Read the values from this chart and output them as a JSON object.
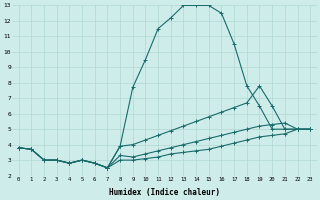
{
  "xlabel": "Humidex (Indice chaleur)",
  "background_color": "#ceecea",
  "grid_color": "#b0d8d4",
  "line_color": "#1a6b6b",
  "xlim": [
    -0.5,
    23.5
  ],
  "ylim": [
    2,
    13
  ],
  "xticks": [
    0,
    1,
    2,
    3,
    4,
    5,
    6,
    7,
    8,
    9,
    10,
    11,
    12,
    13,
    14,
    15,
    16,
    17,
    18,
    19,
    20,
    21,
    22,
    23
  ],
  "yticks": [
    2,
    3,
    4,
    5,
    6,
    7,
    8,
    9,
    10,
    11,
    12,
    13
  ],
  "line1_x": [
    0,
    1,
    2,
    3,
    4,
    5,
    6,
    7,
    8,
    9,
    10,
    11,
    12,
    13,
    14,
    15,
    16,
    17,
    18,
    19,
    20,
    21,
    22,
    23
  ],
  "line1_y": [
    3.8,
    3.7,
    3.0,
    3.0,
    2.8,
    3.0,
    2.8,
    2.5,
    3.9,
    7.7,
    9.5,
    11.5,
    12.2,
    13.0,
    13.0,
    13.0,
    12.5,
    10.5,
    7.8,
    6.5,
    5.0,
    5.0,
    5.0,
    5.0
  ],
  "line2_x": [
    0,
    1,
    2,
    3,
    4,
    5,
    6,
    7,
    8,
    9,
    10,
    11,
    12,
    13,
    14,
    15,
    16,
    17,
    18,
    19,
    20,
    21,
    22,
    23
  ],
  "line2_y": [
    3.8,
    3.7,
    3.0,
    3.0,
    2.8,
    3.0,
    2.8,
    2.5,
    3.9,
    4.0,
    4.3,
    4.6,
    4.9,
    5.2,
    5.5,
    5.8,
    6.1,
    6.4,
    6.7,
    7.8,
    6.5,
    5.0,
    5.0,
    5.0
  ],
  "line3_x": [
    0,
    1,
    2,
    3,
    4,
    5,
    6,
    7,
    8,
    9,
    10,
    11,
    12,
    13,
    14,
    15,
    16,
    17,
    18,
    19,
    20,
    21,
    22,
    23
  ],
  "line3_y": [
    3.8,
    3.7,
    3.0,
    3.0,
    2.8,
    3.0,
    2.8,
    2.5,
    3.3,
    3.2,
    3.4,
    3.6,
    3.8,
    4.0,
    4.2,
    4.4,
    4.6,
    4.8,
    5.0,
    5.2,
    5.3,
    5.4,
    5.0,
    5.0
  ],
  "line4_x": [
    0,
    1,
    2,
    3,
    4,
    5,
    6,
    7,
    8,
    9,
    10,
    11,
    12,
    13,
    14,
    15,
    16,
    17,
    18,
    19,
    20,
    21,
    22,
    23
  ],
  "line4_y": [
    3.8,
    3.7,
    3.0,
    3.0,
    2.8,
    3.0,
    2.8,
    2.5,
    3.0,
    3.0,
    3.1,
    3.2,
    3.4,
    3.5,
    3.6,
    3.7,
    3.9,
    4.1,
    4.3,
    4.5,
    4.6,
    4.7,
    5.0,
    5.0
  ]
}
